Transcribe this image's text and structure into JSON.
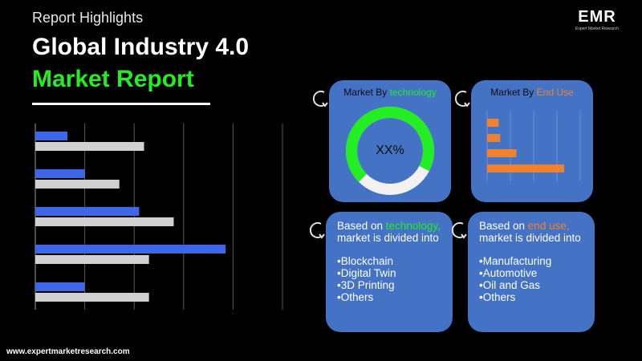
{
  "header": {
    "kicker": "Report Highlights",
    "title_line1": "Global Industry 4.0",
    "title_line2": "Market Report"
  },
  "logo": {
    "text": "EMR",
    "tagline": "Expert Market Research"
  },
  "left_chart": {
    "type": "bar",
    "colors": {
      "blue": "#3d66e8",
      "grey": "#d0d0d0"
    },
    "series": [
      {
        "values": [
          0.13,
          0.2,
          0.42,
          0.77,
          0.2
        ]
      },
      {
        "values": [
          0.44,
          0.34,
          0.56,
          0.46,
          0.46
        ]
      }
    ]
  },
  "card_technology": {
    "title_prefix": "Market By ",
    "title_highlight": "technology",
    "donut_label": "XX%",
    "donut_fill": 0.7
  },
  "card_enduse": {
    "title_prefix": "Market By ",
    "title_highlight": "End Use",
    "bar_values": [
      0.15,
      0.17,
      0.38,
      1.0
    ]
  },
  "segment_technology": {
    "intro_prefix": "Based on ",
    "intro_highlight": "technology,",
    "intro_rest": "market is divided into",
    "items": [
      "•Blockchain",
      "•Digital Twin",
      "•3D Printing",
      "•Others"
    ]
  },
  "segment_enduse": {
    "intro_prefix": "Based on ",
    "intro_highlight": "end use,",
    "intro_rest": "market is divided into",
    "items": [
      "•Manufacturing",
      "•Automotive",
      "•Oil and Gas",
      "•Others"
    ]
  },
  "footer": {
    "url": "www.expertmarketresearch.com"
  }
}
